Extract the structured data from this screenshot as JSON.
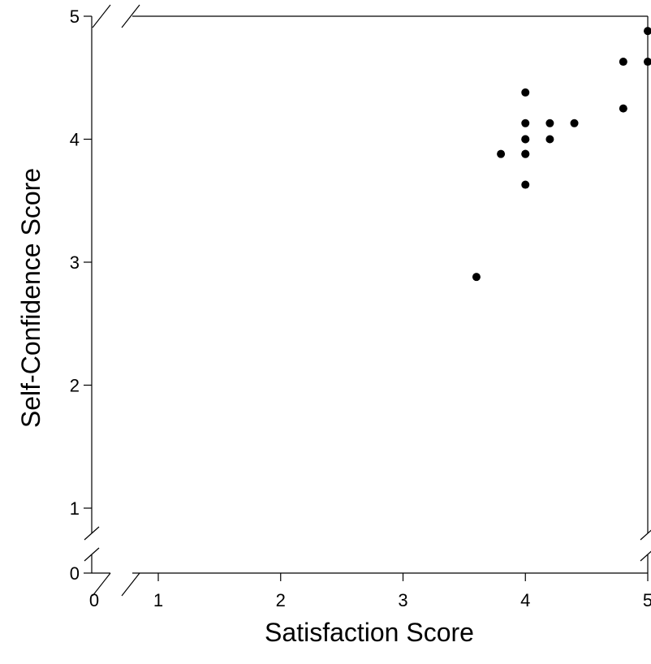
{
  "chart_data": {
    "type": "scatter",
    "title": "",
    "xlabel": "Satisfaction Score",
    "ylabel": "Self-Confidence Score",
    "xlim": [
      0,
      5
    ],
    "ylim": [
      0,
      5
    ],
    "axis_breaks": {
      "x": true,
      "y": true
    },
    "x_ticks": [
      "0",
      "1",
      "2",
      "3",
      "4",
      "5"
    ],
    "y_ticks": [
      "0",
      "1",
      "2",
      "3",
      "4",
      "5"
    ],
    "grid": false,
    "marker_color": "#000000",
    "series": [
      {
        "points": [
          {
            "x": 3.6,
            "y": 2.88
          },
          {
            "x": 3.8,
            "y": 3.88
          },
          {
            "x": 4.0,
            "y": 3.63
          },
          {
            "x": 4.0,
            "y": 3.88
          },
          {
            "x": 4.0,
            "y": 3.88
          },
          {
            "x": 4.0,
            "y": 4.0
          },
          {
            "x": 4.0,
            "y": 4.0
          },
          {
            "x": 4.0,
            "y": 4.13
          },
          {
            "x": 4.0,
            "y": 4.38
          },
          {
            "x": 4.2,
            "y": 4.0
          },
          {
            "x": 4.2,
            "y": 4.13
          },
          {
            "x": 4.4,
            "y": 4.13
          },
          {
            "x": 4.8,
            "y": 4.25
          },
          {
            "x": 4.8,
            "y": 4.63
          },
          {
            "x": 5.0,
            "y": 4.63
          },
          {
            "x": 5.0,
            "y": 4.88
          }
        ]
      }
    ]
  }
}
